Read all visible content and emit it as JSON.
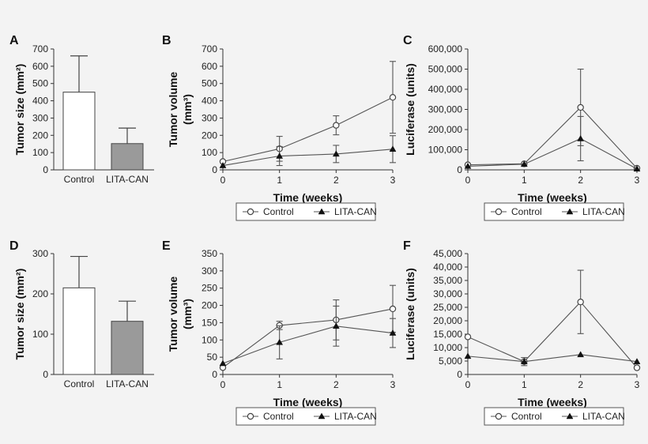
{
  "chart_data": [
    {
      "panel": "A",
      "type": "bar",
      "categories": [
        "Control",
        "LITA-CAN"
      ],
      "values": [
        450,
        152
      ],
      "errors": [
        210,
        90
      ],
      "bar_colors": [
        "#ffffff",
        "#9a9a9a"
      ],
      "ylabel": "Tumor size (mm²)",
      "yticks": [
        "0",
        "100",
        "200",
        "300",
        "400",
        "500",
        "600",
        "700"
      ],
      "ylim": [
        0,
        700
      ]
    },
    {
      "panel": "B",
      "type": "line",
      "x": [
        0,
        1,
        2,
        3
      ],
      "xticks": [
        "0",
        "1",
        "2",
        "3"
      ],
      "xlabel": "Time (weeks)",
      "ylabel": "Tumor volume (mm³)",
      "yticks": [
        "0",
        "100",
        "200",
        "300",
        "400",
        "500",
        "600",
        "700"
      ],
      "ylim": [
        0,
        700
      ],
      "series": [
        {
          "name": "Control",
          "marker": "circle",
          "values": [
            48,
            122,
            258,
            420
          ],
          "errors": [
            0,
            72,
            55,
            208
          ]
        },
        {
          "name": "LITA-CAN",
          "marker": "triangle",
          "values": [
            25,
            80,
            92,
            120
          ],
          "errors": [
            0,
            55,
            50,
            78
          ]
        }
      ]
    },
    {
      "panel": "C",
      "type": "line",
      "x": [
        0,
        1,
        2,
        3
      ],
      "xticks": [
        "0",
        "1",
        "2",
        "3"
      ],
      "xlabel": "Time (weeks)",
      "ylabel": "Luciferase (units)",
      "yticks": [
        "0",
        "100,000",
        "200,000",
        "300,000",
        "400,000",
        "500,000",
        "600,000"
      ],
      "ylim": [
        0,
        600000
      ],
      "series": [
        {
          "name": "Control",
          "marker": "circle",
          "values": [
            25000,
            30000,
            310000,
            8000
          ],
          "errors": [
            0,
            0,
            190000,
            0
          ]
        },
        {
          "name": "LITA-CAN",
          "marker": "triangle",
          "values": [
            18000,
            28000,
            155000,
            5000
          ],
          "errors": [
            0,
            0,
            110000,
            0
          ]
        }
      ]
    },
    {
      "panel": "D",
      "type": "bar",
      "categories": [
        "Control",
        "LITA-CAN"
      ],
      "values": [
        215,
        132
      ],
      "errors": [
        78,
        50
      ],
      "bar_colors": [
        "#ffffff",
        "#9a9a9a"
      ],
      "ylabel": "Tumor size (mm²)",
      "yticks": [
        "0",
        "100",
        "200",
        "300"
      ],
      "ylim": [
        0,
        300
      ]
    },
    {
      "panel": "E",
      "type": "line",
      "x": [
        0,
        1,
        2,
        3
      ],
      "xticks": [
        "0",
        "1",
        "2",
        "3"
      ],
      "xlabel": "Time (weeks)",
      "ylabel": "Tumor volume (mm³)",
      "yticks": [
        "0",
        "50",
        "100",
        "150",
        "200",
        "250",
        "300",
        "350"
      ],
      "ylim": [
        0,
        350
      ],
      "series": [
        {
          "name": "Control",
          "marker": "circle",
          "values": [
            20,
            142,
            158,
            190
          ],
          "errors": [
            0,
            12,
            58,
            68
          ]
        },
        {
          "name": "LITA-CAN",
          "marker": "triangle",
          "values": [
            32,
            93,
            140,
            120
          ],
          "errors": [
            0,
            48,
            58,
            42
          ]
        }
      ]
    },
    {
      "panel": "F",
      "type": "line",
      "x": [
        0,
        1,
        2,
        3
      ],
      "xticks": [
        "0",
        "1",
        "2",
        "3"
      ],
      "xlabel": "Time (weeks)",
      "ylabel": "Luciferase (units)",
      "yticks": [
        "0",
        "5,000",
        "10,000",
        "15,000",
        "20,000",
        "25,000",
        "30,000",
        "35,000",
        "40,000",
        "45,000"
      ],
      "ylim": [
        0,
        45000
      ],
      "series": [
        {
          "name": "Control",
          "marker": "circle",
          "values": [
            14000,
            4800,
            27000,
            2500
          ],
          "errors": [
            0,
            0,
            11800,
            0
          ]
        },
        {
          "name": "LITA-CAN",
          "marker": "triangle",
          "values": [
            6800,
            4800,
            7400,
            4800
          ],
          "errors": [
            0,
            1500,
            0,
            0
          ]
        }
      ]
    }
  ]
}
